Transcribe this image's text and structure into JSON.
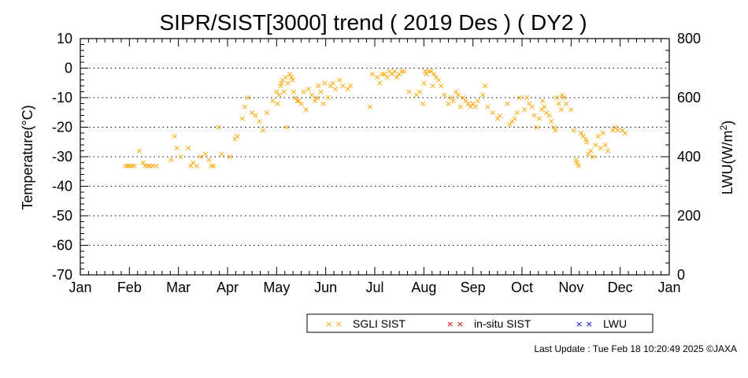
{
  "chart_data": {
    "type": "scatter",
    "title": "SIPR/SIST[3000] trend ( 2019 Des ) ( DY2 )",
    "ylabel": "Temperature(°C)",
    "y2label_main": "LWU(W/m",
    "y2label_sup": "2",
    "y2label_end": ")",
    "xlim": [
      0,
      12
    ],
    "ylim": [
      -70,
      10
    ],
    "y2lim": [
      0,
      800
    ],
    "x_tick_labels": [
      "Jan",
      "Feb",
      "Mar",
      "Apr",
      "May",
      "Jun",
      "Jul",
      "Aug",
      "Sep",
      "Oct",
      "Nov",
      "Dec",
      "Jan"
    ],
    "y_ticks": [
      10,
      0,
      -10,
      -20,
      -30,
      -40,
      -50,
      -60,
      -70
    ],
    "y2_ticks": [
      800,
      600,
      400,
      200,
      0
    ],
    "grid": "horizontal dotted",
    "legend_position": "bottom",
    "series": [
      {
        "name": "SGLI SIST",
        "color": "#FFA500",
        "marker": "×",
        "x": [
          0.92,
          0.97,
          1.0,
          1.05,
          1.1,
          1.2,
          1.28,
          1.32,
          1.38,
          1.42,
          1.48,
          1.55,
          1.85,
          1.92,
          1.97,
          2.05,
          2.2,
          2.25,
          2.3,
          2.37,
          2.45,
          2.55,
          2.62,
          2.67,
          2.72,
          2.82,
          2.88,
          3.05,
          3.15,
          3.2,
          3.3,
          3.35,
          3.42,
          3.5,
          3.57,
          3.65,
          3.72,
          3.8,
          3.92,
          4.0,
          4.02,
          4.05,
          4.08,
          4.1,
          4.12,
          4.15,
          4.18,
          4.2,
          4.23,
          4.27,
          4.3,
          4.33,
          4.35,
          4.38,
          4.42,
          4.45,
          4.5,
          4.55,
          4.6,
          4.65,
          4.72,
          4.78,
          4.82,
          4.85,
          4.9,
          4.95,
          4.98,
          5.05,
          5.1,
          5.15,
          5.2,
          5.28,
          5.35,
          5.45,
          5.5,
          5.9,
          5.95,
          6.05,
          6.1,
          6.15,
          6.2,
          6.25,
          6.3,
          6.35,
          6.4,
          6.45,
          6.5,
          6.55,
          6.6,
          6.7,
          6.85,
          6.92,
          6.98,
          7.0,
          7.03,
          7.05,
          7.1,
          7.15,
          7.18,
          7.2,
          7.25,
          7.3,
          7.35,
          7.42,
          7.5,
          7.55,
          7.6,
          7.65,
          7.7,
          7.75,
          7.8,
          7.85,
          7.9,
          7.95,
          8.0,
          8.05,
          8.1,
          8.2,
          8.25,
          8.3,
          8.4,
          8.5,
          8.55,
          8.7,
          8.75,
          8.8,
          8.85,
          8.9,
          8.95,
          9.05,
          9.1,
          9.15,
          9.2,
          9.25,
          9.3,
          9.35,
          9.4,
          9.42,
          9.45,
          9.5,
          9.55,
          9.6,
          9.65,
          9.68,
          9.7,
          9.75,
          9.8,
          9.82,
          9.85,
          9.9,
          10.0,
          10.05,
          10.1,
          10.12,
          10.15,
          10.2,
          10.25,
          10.3,
          10.32,
          10.35,
          10.4,
          10.45,
          10.5,
          10.55,
          10.6,
          10.65,
          10.7,
          10.75,
          10.85,
          10.9,
          10.95,
          11.05,
          11.1
        ],
        "y": [
          -33,
          -33,
          -33,
          -33,
          -33,
          -28,
          -32,
          -33,
          -33,
          -33,
          -33,
          -33,
          -31,
          -23,
          -27,
          -30,
          -27,
          -33,
          -32,
          -33,
          -30,
          -29,
          -31,
          -33,
          -33,
          -20,
          -29,
          -30,
          -24,
          -23,
          -17,
          -13,
          -10,
          -15,
          -16,
          -18,
          -21,
          -15,
          -11,
          -8,
          -12,
          -9,
          -6,
          -5,
          -4,
          -8,
          -3,
          -20,
          -5,
          -2,
          -3,
          -4,
          -8,
          -10,
          -11,
          -11,
          -12,
          -8,
          -14,
          -7,
          -9,
          -11,
          -10,
          -6,
          -8,
          -12,
          -5,
          -10,
          -6,
          -5,
          -7,
          -4,
          -6,
          -7,
          -6,
          -13,
          -2,
          -3,
          -5,
          -2,
          -2,
          -3,
          -1,
          -2,
          -1,
          -3,
          -2,
          -1,
          -1,
          -8,
          -9,
          -8,
          -12,
          -5,
          -1,
          -2,
          -1,
          -1,
          -6,
          -2,
          -3,
          -4,
          -6,
          -9,
          -12,
          -10,
          -11,
          -8,
          -9,
          -13,
          -10,
          -11,
          -12,
          -13,
          -12,
          -13,
          -11,
          -9,
          -6,
          -13,
          -15,
          -17,
          -16,
          -12,
          -19,
          -18,
          -17,
          -15,
          -10,
          -14,
          -10,
          -12,
          -13,
          -16,
          -20,
          -17,
          -14,
          -11,
          -13,
          -15,
          -16,
          -18,
          -20,
          -21,
          -10,
          -12,
          -14,
          -9,
          -10,
          -12,
          -14,
          -21,
          -31,
          -32,
          -33,
          -22,
          -23,
          -24,
          -25,
          -29,
          -28,
          -30,
          -26,
          -23,
          -27,
          -22,
          -26,
          -28,
          -21,
          -20,
          -21,
          -21,
          -22
        ]
      },
      {
        "name": "in-situ SIST",
        "color": "#DD0000",
        "marker": "×",
        "x": [],
        "y": []
      },
      {
        "name": "LWU",
        "color": "#0000DD",
        "marker": "×",
        "x": [],
        "y": []
      }
    ]
  },
  "footer": {
    "last_update": "Last Update : Tue Feb 18 10:20:49 2025  ©JAXA"
  }
}
